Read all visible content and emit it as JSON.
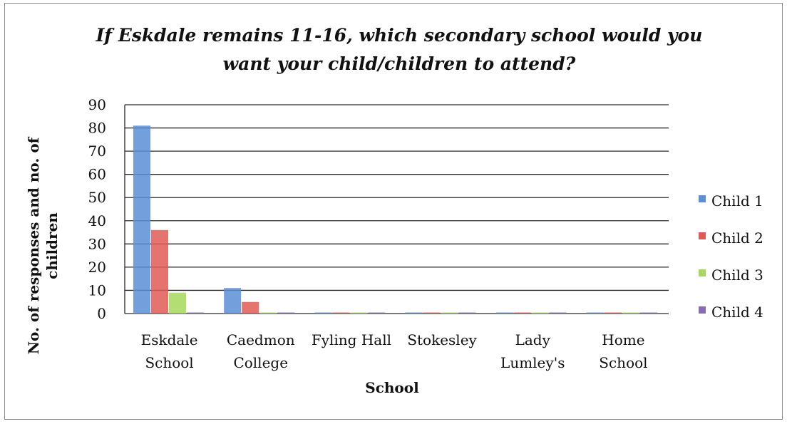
{
  "chart_data": {
    "type": "bar",
    "title": "If Eskdale remains 11-16, which secondary school would you want your child/children to attend?",
    "xlabel": "School",
    "ylabel": "No. of responses and no. of children",
    "ylim": [
      0,
      90
    ],
    "yticks": [
      0,
      10,
      20,
      30,
      40,
      50,
      60,
      70,
      80,
      90
    ],
    "grid": true,
    "legend_position": "right",
    "categories": [
      [
        "Eskdale",
        "School"
      ],
      [
        "Caedmon",
        "College"
      ],
      [
        "Fyling Hall"
      ],
      [
        "Stokesley"
      ],
      [
        "Lady",
        "Lumley's"
      ],
      [
        "Home",
        "School"
      ]
    ],
    "series": [
      {
        "name": "Child 1",
        "color": "#5b8fd6",
        "values": [
          81,
          11,
          0,
          0,
          0,
          0
        ]
      },
      {
        "name": "Child 2",
        "color": "#e05a55",
        "values": [
          36,
          5,
          0,
          0,
          0,
          0
        ]
      },
      {
        "name": "Child 3",
        "color": "#a6d85a",
        "values": [
          9,
          0,
          0,
          0,
          0,
          0
        ]
      },
      {
        "name": "Child 4",
        "color": "#8a6bb5",
        "values": [
          0,
          0,
          0,
          0,
          0,
          0
        ]
      }
    ]
  }
}
